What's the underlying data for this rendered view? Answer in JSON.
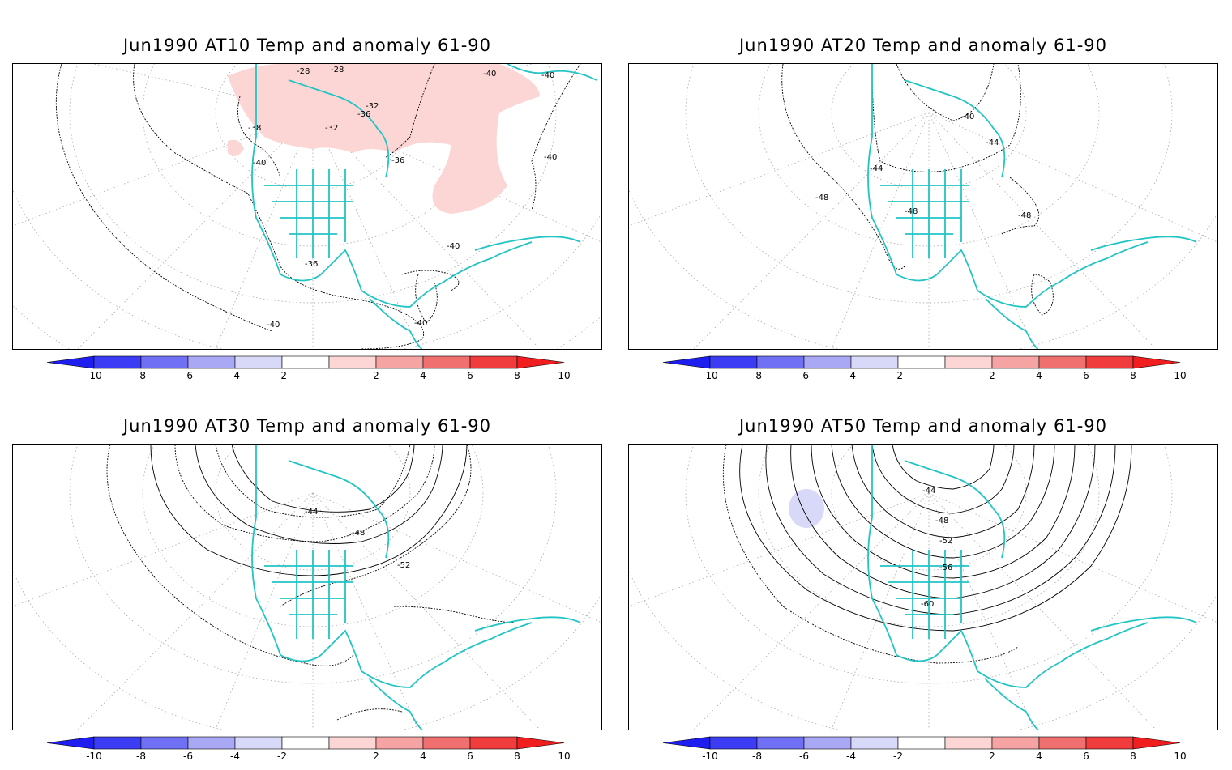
{
  "panels": [
    {
      "title": "Jun1990 AT10 Temp and anomaly 61-90",
      "contour_labels": [
        "-28",
        "-28",
        "-32",
        "-32",
        "-36",
        "-38",
        "-36",
        "-40",
        "-40",
        "-40",
        "-40",
        "-40",
        "-36",
        "-40",
        "-40"
      ]
    },
    {
      "title": "Jun1990 AT20 Temp and anomaly 61-90",
      "contour_labels": [
        "-40",
        "-44",
        "-44",
        "-48",
        "-48",
        "-48"
      ]
    },
    {
      "title": "Jun1990 AT30 Temp and anomaly 61-90",
      "contour_labels": [
        "-44",
        "-48",
        "-52"
      ]
    },
    {
      "title": "Jun1990 AT50 Temp and anomaly 61-90",
      "contour_labels": [
        "-44",
        "-48",
        "-52",
        "-56",
        "-60"
      ]
    }
  ],
  "colorbar": {
    "ticks": [
      "-10",
      "-8",
      "-6",
      "-4",
      "-2",
      "2",
      "4",
      "6",
      "8",
      "10"
    ],
    "colors": [
      "#1e1ef0",
      "#3c3cf5",
      "#7070f5",
      "#a8a8f5",
      "#d8d8f8",
      "#ffffff",
      "#fcd5d5",
      "#f5a3a3",
      "#f07070",
      "#f03c3c",
      "#f01e1e"
    ]
  },
  "colors": {
    "coastline": "#22c4c4",
    "positive_anomaly_fill": "#fcd5d5",
    "negative_anomaly_fill": "#d8d8f8",
    "contour": "#000000",
    "grid": "#aaaaaa"
  }
}
